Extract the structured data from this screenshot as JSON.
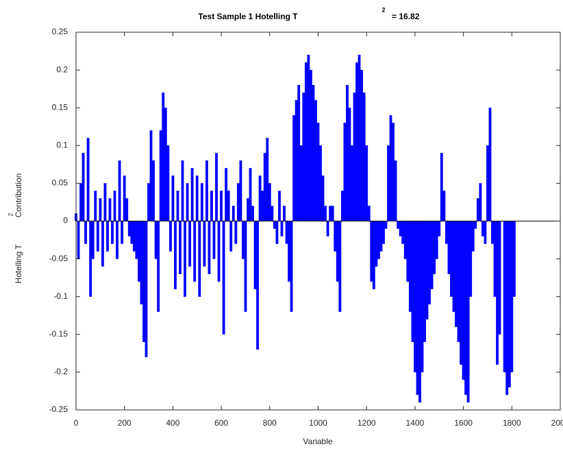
{
  "chart_data": {
    "type": "bar",
    "title": "Test Sample 1 Hotelling T",
    "title_superscript": "2",
    "title_suffix": "= 16.82",
    "xlabel": "Variable",
    "ylabel": "Hotelling T",
    "ylabel_superscript": "2",
    "ylabel_suffix": "Contribution",
    "color": "#0000ff",
    "xlim": [
      0,
      2000
    ],
    "xticks": [
      0,
      200,
      400,
      600,
      800,
      1000,
      1200,
      1400,
      1600,
      1800,
      2000
    ],
    "ylim": [
      -0.25,
      0.25
    ],
    "yticks": [
      -0.25,
      -0.2,
      -0.15,
      -0.1,
      -0.05,
      0,
      0.05,
      0.1,
      0.15,
      0.2,
      0.25
    ],
    "x": [
      0,
      10,
      20,
      30,
      40,
      50,
      60,
      70,
      80,
      90,
      100,
      110,
      120,
      130,
      140,
      150,
      160,
      170,
      180,
      190,
      200,
      210,
      220,
      230,
      240,
      250,
      260,
      270,
      280,
      290,
      300,
      310,
      320,
      330,
      340,
      350,
      360,
      370,
      380,
      390,
      400,
      410,
      420,
      430,
      440,
      450,
      460,
      470,
      480,
      490,
      500,
      510,
      520,
      530,
      540,
      550,
      560,
      570,
      580,
      590,
      600,
      610,
      620,
      630,
      640,
      650,
      660,
      670,
      680,
      690,
      700,
      710,
      720,
      730,
      740,
      750,
      760,
      770,
      780,
      790,
      800,
      810,
      820,
      830,
      840,
      850,
      860,
      870,
      880,
      890,
      900,
      910,
      920,
      930,
      940,
      950,
      960,
      970,
      980,
      990,
      1000,
      1010,
      1020,
      1030,
      1040,
      1050,
      1060,
      1070,
      1080,
      1090,
      1100,
      1110,
      1120,
      1130,
      1140,
      1150,
      1160,
      1170,
      1180,
      1190,
      1200,
      1210,
      1220,
      1230,
      1240,
      1250,
      1260,
      1270,
      1280,
      1290,
      1300,
      1310,
      1320,
      1330,
      1340,
      1350,
      1360,
      1370,
      1380,
      1390,
      1400,
      1410,
      1420,
      1430,
      1440,
      1450,
      1460,
      1470,
      1480,
      1490,
      1500,
      1510,
      1520,
      1530,
      1540,
      1550,
      1560,
      1570,
      1580,
      1590,
      1600,
      1610,
      1620,
      1630,
      1640,
      1650,
      1660,
      1670,
      1680,
      1690,
      1700,
      1710,
      1720,
      1730,
      1740,
      1750,
      1760,
      1770,
      1780,
      1790,
      1800,
      1810
    ],
    "values": [
      0.01,
      -0.05,
      0.05,
      0.09,
      -0.03,
      0.11,
      -0.1,
      -0.05,
      0.04,
      -0.04,
      0.03,
      -0.06,
      0.05,
      -0.04,
      0.03,
      -0.03,
      0.04,
      -0.05,
      0.08,
      -0.03,
      0.06,
      0.03,
      -0.02,
      -0.03,
      -0.04,
      -0.05,
      -0.08,
      -0.11,
      -0.16,
      -0.18,
      0.05,
      0.12,
      0.08,
      -0.05,
      -0.12,
      0.12,
      0.17,
      0.15,
      0.1,
      -0.04,
      0.06,
      -0.09,
      0.04,
      -0.07,
      0.08,
      -0.1,
      0.05,
      -0.06,
      0.07,
      -0.08,
      0.06,
      -0.1,
      0.05,
      -0.06,
      0.08,
      -0.07,
      0.04,
      -0.05,
      0.09,
      -0.08,
      0.04,
      -0.15,
      0.07,
      0.04,
      -0.04,
      0.02,
      -0.03,
      0.05,
      0.08,
      -0.05,
      -0.12,
      0.03,
      0.07,
      0.02,
      -0.09,
      -0.17,
      0.06,
      0.04,
      0.09,
      0.11,
      0.05,
      0.02,
      -0.01,
      -0.03,
      0.04,
      -0.02,
      0.02,
      -0.03,
      -0.08,
      -0.12,
      0.14,
      0.16,
      0.18,
      0.1,
      0.17,
      0.21,
      0.22,
      0.2,
      0.18,
      0.16,
      0.13,
      0.1,
      0.06,
      0.02,
      -0.02,
      0.02,
      0.02,
      -0.04,
      -0.08,
      -0.12,
      0.04,
      0.13,
      0.18,
      0.15,
      0.1,
      0.17,
      0.21,
      0.22,
      0.2,
      0.17,
      0.1,
      0.02,
      -0.08,
      -0.09,
      -0.06,
      -0.05,
      -0.04,
      -0.03,
      -0.01,
      0.1,
      0.14,
      0.13,
      0.08,
      -0.01,
      -0.02,
      -0.03,
      -0.05,
      -0.08,
      -0.12,
      -0.16,
      -0.2,
      -0.23,
      -0.24,
      -0.2,
      -0.16,
      -0.13,
      -0.11,
      -0.09,
      -0.07,
      -0.05,
      -0.02,
      0.09,
      0.04,
      -0.03,
      -0.07,
      -0.1,
      -0.12,
      -0.14,
      -0.16,
      -0.19,
      -0.21,
      -0.23,
      -0.24,
      -0.1,
      -0.04,
      -0.01,
      0.03,
      0.05,
      -0.02,
      -0.03,
      0.1,
      0.15,
      -0.03,
      -0.1,
      -0.19,
      -0.15,
      0,
      -0.2,
      -0.23,
      -0.22,
      -0.2,
      -0.1
    ]
  }
}
